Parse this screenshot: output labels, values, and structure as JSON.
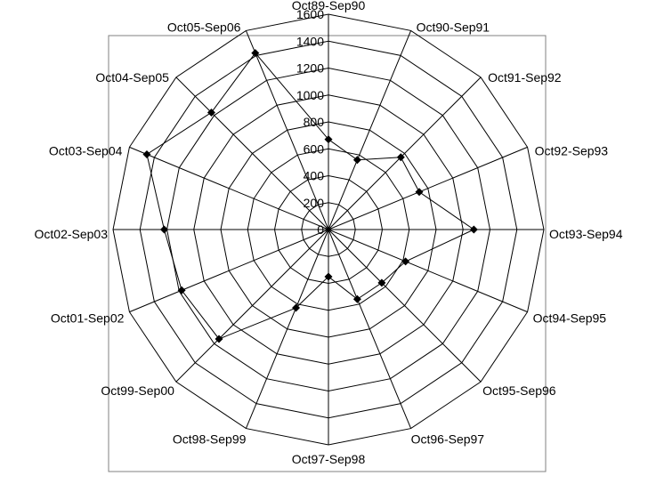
{
  "chart_data": {
    "type": "radar",
    "title": "",
    "categories": [
      "Oct89-Sep90",
      "Oct90-Sep91",
      "Oct91-Sep92",
      "Oct92-Sep93",
      "Oct93-Sep94",
      "Oct94-Sep95",
      "Oct95-Sep96",
      "Oct96-Sep97",
      "Oct97-Sep98",
      "Oct98-Sep99",
      "Oct99-Sep00",
      "Oct01-Sep02",
      "Oct02-Sep03",
      "Oct03-Sep04",
      "Oct04-Sep05",
      "Oct05-Sep06"
    ],
    "series": [
      {
        "values": [
          670,
          560,
          760,
          730,
          1080,
          620,
          560,
          560,
          350,
          630,
          1150,
          1180,
          1220,
          1460,
          1230,
          1420
        ]
      }
    ],
    "rlim": [
      0,
      1600
    ],
    "ticks": [
      0,
      200,
      400,
      600,
      800,
      1000,
      1200,
      1400,
      1600
    ],
    "grid": true,
    "line_color": "#000000",
    "marker": "diamond"
  }
}
